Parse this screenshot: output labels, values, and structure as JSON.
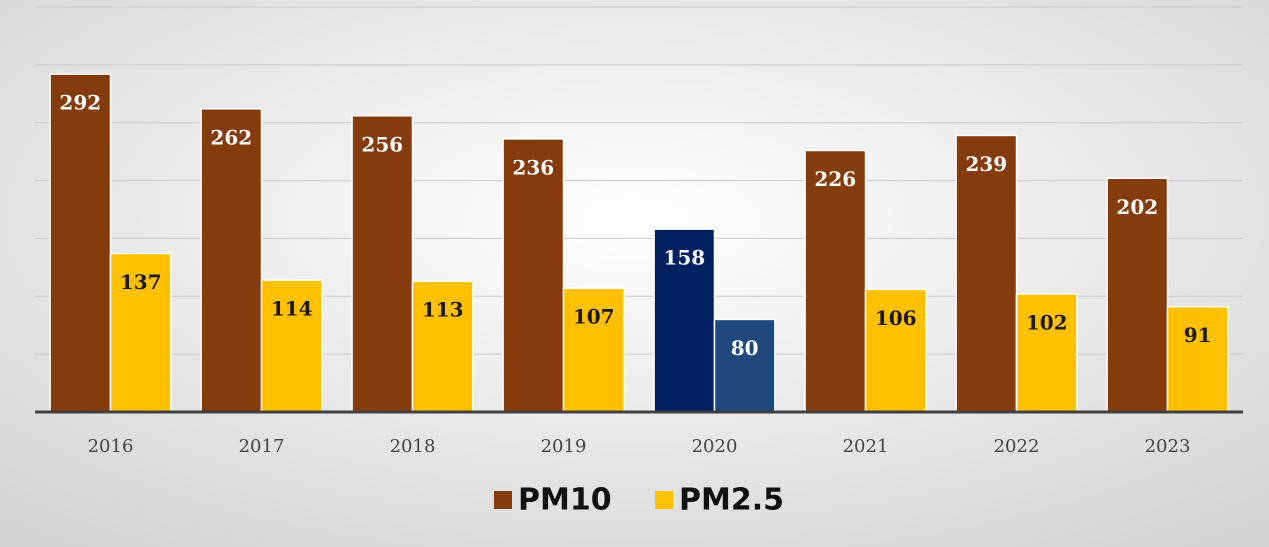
{
  "chart_data": {
    "type": "bar",
    "categories": [
      "2016",
      "2017",
      "2018",
      "2019",
      "2020",
      "2021",
      "2022",
      "2023"
    ],
    "series": [
      {
        "name": "PM10",
        "color": "#843c0c",
        "colors": [
          "#843c0c",
          "#843c0c",
          "#843c0c",
          "#843c0c",
          "#002060",
          "#843c0c",
          "#843c0c",
          "#843c0c"
        ],
        "values": [
          292,
          262,
          256,
          236,
          158,
          226,
          239,
          202
        ]
      },
      {
        "name": "PM2.5",
        "color": "#ffc000",
        "colors": [
          "#ffc000",
          "#ffc000",
          "#ffc000",
          "#ffc000",
          "#1f497d",
          "#ffc000",
          "#ffc000",
          "#ffc000"
        ],
        "values": [
          137,
          114,
          113,
          107,
          80,
          106,
          102,
          91
        ]
      }
    ],
    "ylim": [
      0,
      350
    ],
    "yticks": [
      0,
      50,
      100,
      150,
      200,
      250,
      300,
      350
    ],
    "grid": true,
    "legend": "bottom"
  }
}
